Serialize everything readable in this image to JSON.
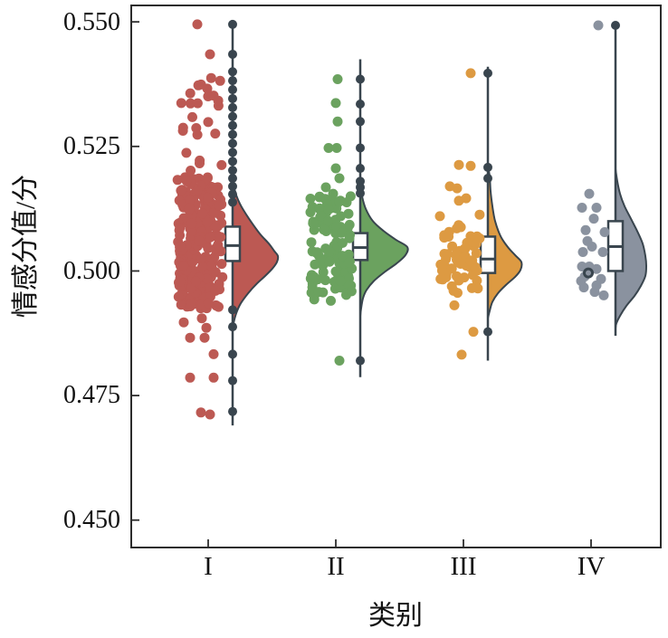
{
  "figure": {
    "background": "#ffffff"
  },
  "chart_data": {
    "type": "raincloud (jittered scatter + boxplot + half-violin per category)",
    "title": "",
    "xlabel": "类别",
    "ylabel": "情感分值/分",
    "categories": [
      "I",
      "II",
      "III",
      "IV"
    ],
    "yticks": [
      "0.550",
      "0.525",
      "0.500",
      "0.475",
      "0.450"
    ],
    "ytick_values": [
      0.55,
      0.525,
      0.5,
      0.475,
      0.45
    ],
    "ylim": [
      0.4445,
      0.5533
    ],
    "grid": false,
    "legend": "none",
    "palette": {
      "dark": "#39454e",
      "frame": "#2c2c2c",
      "box_fill": "#ffffff"
    },
    "series": [
      {
        "label": "I",
        "color": "#bc5953",
        "box": {
          "q1": 0.502,
          "median": 0.5051,
          "q3": 0.5089
        },
        "whiskers": {
          "low": 0.469,
          "high": 0.5495
        },
        "line_dots": [
          0.5495,
          0.5435,
          0.54,
          0.5382,
          0.5364,
          0.5346,
          0.5328,
          0.531,
          0.5292,
          0.5274,
          0.5256,
          0.5238,
          0.522,
          0.5202,
          0.5186,
          0.517,
          0.5154,
          0.5138,
          0.4922,
          0.4888,
          0.4833,
          0.478,
          0.4718
        ],
        "violin_profile": [
          [
            0.52,
            0
          ],
          [
            0.5165,
            2
          ],
          [
            0.5135,
            8
          ],
          [
            0.5105,
            18
          ],
          [
            0.5075,
            30
          ],
          [
            0.5055,
            40
          ],
          [
            0.504,
            46
          ],
          [
            0.503,
            50
          ],
          [
            0.5018,
            49
          ],
          [
            0.5005,
            44
          ],
          [
            0.499,
            36
          ],
          [
            0.4975,
            27
          ],
          [
            0.4955,
            17
          ],
          [
            0.4935,
            9
          ],
          [
            0.4915,
            4
          ],
          [
            0.4895,
            1
          ],
          [
            0.488,
            0
          ]
        ],
        "scatter_dense": [
          {
            "count": 250,
            "dx": [
              -61,
              -11
            ],
            "v_range": [
              0.4925,
              0.519
            ],
            "seed": 101
          },
          {
            "count": 26,
            "dx": [
              -60,
              -12
            ],
            "v_range": [
              0.519,
              0.539
            ],
            "seed": 102
          }
        ],
        "scatter_points": [
          [
            -39,
            0.5495
          ],
          [
            -25,
            0.5435
          ],
          [
            -34,
            0.4905
          ],
          [
            -54,
            0.4897
          ],
          [
            -29,
            0.4886
          ],
          [
            -47,
            0.4866
          ],
          [
            -31,
            0.4866
          ],
          [
            -21,
            0.4833
          ],
          [
            -47,
            0.4786
          ],
          [
            -21,
            0.4786
          ],
          [
            -35,
            0.4716
          ],
          [
            -25,
            0.4712
          ]
        ],
        "ring_points": []
      },
      {
        "label": "II",
        "color": "#6ba25f",
        "box": {
          "q1": 0.5022,
          "median": 0.5047,
          "q3": 0.5076
        },
        "whiskers": {
          "low": 0.4787,
          "high": 0.5425
        },
        "line_dots": [
          0.5385,
          0.5335,
          0.53,
          0.5247,
          0.5206,
          0.518,
          0.5168,
          0.5156,
          0.482
        ],
        "violin_profile": [
          [
            0.5175,
            0
          ],
          [
            0.515,
            2
          ],
          [
            0.5125,
            6
          ],
          [
            0.51,
            14
          ],
          [
            0.508,
            26
          ],
          [
            0.5062,
            40
          ],
          [
            0.5048,
            52
          ],
          [
            0.5032,
            50
          ],
          [
            0.5015,
            40
          ],
          [
            0.4998,
            27
          ],
          [
            0.498,
            15
          ],
          [
            0.4962,
            7
          ],
          [
            0.4945,
            3
          ],
          [
            0.4925,
            1
          ],
          [
            0.491,
            0
          ]
        ],
        "scatter_dense": [
          {
            "count": 112,
            "dx": [
              -55,
              -9
            ],
            "v_range": [
              0.494,
              0.515
            ],
            "seed": 201
          }
        ],
        "scatter_points": [
          [
            -25,
            0.5385
          ],
          [
            -27,
            0.5337
          ],
          [
            -25,
            0.53
          ],
          [
            -35,
            0.5247
          ],
          [
            -26,
            0.5247
          ],
          [
            -27,
            0.5206
          ],
          [
            -23,
            0.5186
          ],
          [
            -38,
            0.5168
          ],
          [
            -30,
            0.5155
          ],
          [
            -45,
            0.5148
          ],
          [
            -23,
            0.482
          ]
        ],
        "ring_points": []
      },
      {
        "label": "III",
        "color": "#dd9a42",
        "box": {
          "q1": 0.4996,
          "median": 0.5024,
          "q3": 0.5069
        },
        "whiskers": {
          "low": 0.482,
          "high": 0.541
        },
        "line_dots": [
          0.5397,
          0.5208,
          0.5186,
          0.4878
        ],
        "violin_profile": [
          [
            0.521,
            0
          ],
          [
            0.519,
            2
          ],
          [
            0.516,
            3
          ],
          [
            0.513,
            5
          ],
          [
            0.51,
            8
          ],
          [
            0.507,
            14
          ],
          [
            0.5048,
            22
          ],
          [
            0.5032,
            30
          ],
          [
            0.5018,
            37
          ],
          [
            0.5002,
            36
          ],
          [
            0.4988,
            30
          ],
          [
            0.4972,
            20
          ],
          [
            0.4955,
            11
          ],
          [
            0.4938,
            5
          ],
          [
            0.492,
            2
          ],
          [
            0.4905,
            0
          ]
        ],
        "scatter_dense": [
          {
            "count": 62,
            "dx": [
              -53,
              -9
            ],
            "v_mean": 0.503,
            "v_sd": 0.0048,
            "v_clip": [
              0.4945,
              0.5125
            ],
            "seed": 301
          }
        ],
        "scatter_points": [
          [
            -19,
            0.5397
          ],
          [
            -32,
            0.5213
          ],
          [
            -19,
            0.5211
          ],
          [
            -42,
            0.517
          ],
          [
            -34,
            0.5166
          ],
          [
            -32,
            0.5141
          ],
          [
            -24,
            0.5146
          ],
          [
            -37,
            0.4931
          ],
          [
            -16,
            0.4878
          ],
          [
            -29,
            0.4832
          ]
        ],
        "ring_points": []
      },
      {
        "label": "IV",
        "color": "#8a929f",
        "box": {
          "q1": 0.5,
          "median": 0.5049,
          "q3": 0.51
        },
        "whiskers": {
          "low": 0.487,
          "high": 0.5493
        },
        "line_dots": [
          0.5493
        ],
        "violin_profile": [
          [
            0.5205,
            0
          ],
          [
            0.518,
            2
          ],
          [
            0.5155,
            5
          ],
          [
            0.513,
            10
          ],
          [
            0.5105,
            17
          ],
          [
            0.508,
            24
          ],
          [
            0.5055,
            30
          ],
          [
            0.503,
            33
          ],
          [
            0.501,
            34
          ],
          [
            0.499,
            33
          ],
          [
            0.497,
            28
          ],
          [
            0.495,
            21
          ],
          [
            0.493,
            12
          ],
          [
            0.491,
            5
          ],
          [
            0.4895,
            1
          ],
          [
            0.4885,
            0
          ]
        ],
        "scatter_dense": [],
        "scatter_points": [
          [
            -19,
            0.5493
          ],
          [
            -29,
            0.5155
          ],
          [
            -21,
            0.5127
          ],
          [
            -37,
            0.5127
          ],
          [
            -24,
            0.5105
          ],
          [
            -33,
            0.5082
          ],
          [
            -12,
            0.5078
          ],
          [
            -31,
            0.506
          ],
          [
            -26,
            0.5049
          ],
          [
            -36,
            0.5038
          ],
          [
            -14,
            0.5038
          ],
          [
            -37,
            0.5009
          ],
          [
            -29,
            0.5009
          ],
          [
            -21,
            0.5004
          ],
          [
            -34,
            0.4989
          ],
          [
            -38,
            0.498
          ],
          [
            -16,
            0.4984
          ],
          [
            -21,
            0.4971
          ],
          [
            -35,
            0.4967
          ],
          [
            -23,
            0.4958
          ],
          [
            -13,
            0.4951
          ]
        ],
        "ring_points": [
          [
            -30,
            0.4996
          ]
        ]
      }
    ]
  }
}
